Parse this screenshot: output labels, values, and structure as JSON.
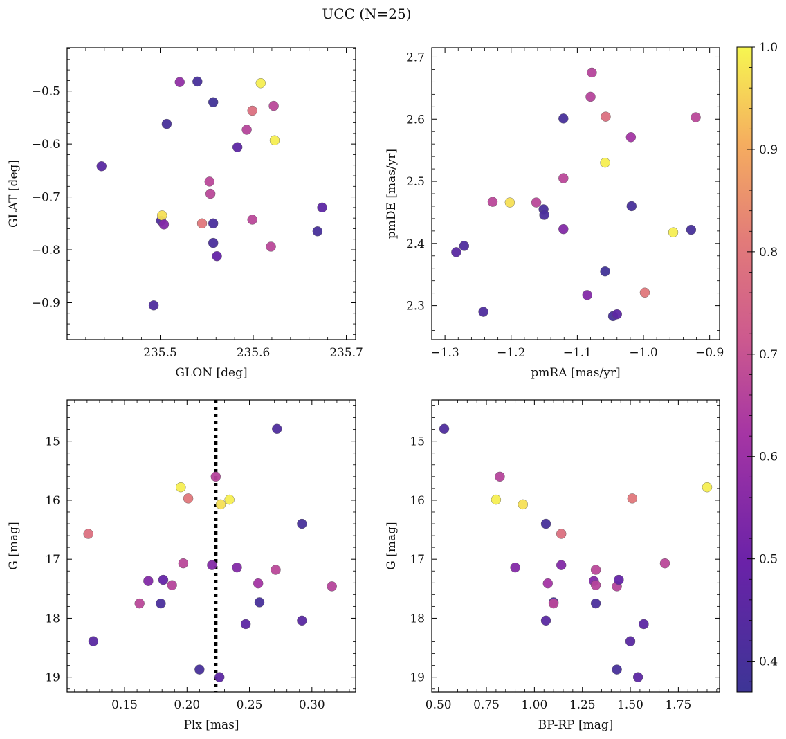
{
  "figure": {
    "title": "UCC (N=25)"
  },
  "colorbar": {
    "colormap": "plasma",
    "range": [
      0.37,
      1.0
    ],
    "ticks": [
      0.4,
      0.5,
      0.6,
      0.7,
      0.8,
      0.9,
      1.0
    ],
    "tick_labels": [
      "0.4",
      "0.5",
      "0.6",
      "0.7",
      "0.8",
      "0.9",
      "1.0"
    ]
  },
  "chart_data": [
    {
      "type": "scatter",
      "xlabel": "GLON [deg]",
      "ylabel": "GLAT [deg]",
      "xlim": [
        235.4,
        235.71
      ],
      "ylim": [
        -0.97,
        -0.418
      ],
      "y_inverted": false,
      "xticks": [
        235.5,
        235.6,
        235.7
      ],
      "xtick_labels": [
        "235.5",
        "235.6",
        "235.7"
      ],
      "yticks": [
        -0.9,
        -0.8,
        -0.7,
        -0.6,
        -0.5
      ],
      "ytick_labels": [
        "−0.9",
        "−0.8",
        "−0.7",
        "−0.6",
        "−0.5"
      ],
      "points": [
        {
          "x": 235.437,
          "y": -0.642,
          "c": 0.45
        },
        {
          "x": 235.493,
          "y": -0.905,
          "c": 0.42
        },
        {
          "x": 235.501,
          "y": -0.745,
          "c": 0.42
        },
        {
          "x": 235.502,
          "y": -0.735,
          "c": 0.97
        },
        {
          "x": 235.504,
          "y": -0.752,
          "c": 0.55
        },
        {
          "x": 235.507,
          "y": -0.562,
          "c": 0.4
        },
        {
          "x": 235.521,
          "y": -0.483,
          "c": 0.58
        },
        {
          "x": 235.54,
          "y": -0.482,
          "c": 0.4
        },
        {
          "x": 235.545,
          "y": -0.75,
          "c": 0.8
        },
        {
          "x": 235.553,
          "y": -0.671,
          "c": 0.67
        },
        {
          "x": 235.554,
          "y": -0.694,
          "c": 0.67
        },
        {
          "x": 235.557,
          "y": -0.521,
          "c": 0.38
        },
        {
          "x": 235.557,
          "y": -0.75,
          "c": 0.41
        },
        {
          "x": 235.557,
          "y": -0.787,
          "c": 0.41
        },
        {
          "x": 235.561,
          "y": -0.812,
          "c": 0.48
        },
        {
          "x": 235.583,
          "y": -0.606,
          "c": 0.46
        },
        {
          "x": 235.593,
          "y": -0.573,
          "c": 0.66
        },
        {
          "x": 235.599,
          "y": -0.537,
          "c": 0.78
        },
        {
          "x": 235.599,
          "y": -0.743,
          "c": 0.67
        },
        {
          "x": 235.608,
          "y": -0.485,
          "c": 0.99
        },
        {
          "x": 235.619,
          "y": -0.794,
          "c": 0.67
        },
        {
          "x": 235.622,
          "y": -0.528,
          "c": 0.67
        },
        {
          "x": 235.623,
          "y": -0.593,
          "c": 0.99
        },
        {
          "x": 235.669,
          "y": -0.765,
          "c": 0.4
        },
        {
          "x": 235.674,
          "y": -0.72,
          "c": 0.46
        }
      ]
    },
    {
      "type": "scatter",
      "xlabel": "pmRA [mas/yr]",
      "ylabel": "pmDE [mas/yr]",
      "xlim": [
        -1.32,
        -0.885
      ],
      "ylim": [
        2.245,
        2.715
      ],
      "y_inverted": false,
      "xticks": [
        -1.3,
        -1.2,
        -1.1,
        -1.0,
        -0.9
      ],
      "xtick_labels": [
        "−1.3",
        "−1.2",
        "−1.1",
        "−1.0",
        "−0.9"
      ],
      "yticks": [
        2.3,
        2.4,
        2.5,
        2.6,
        2.7
      ],
      "ytick_labels": [
        "2.3",
        "2.4",
        "2.5",
        "2.6",
        "2.7"
      ],
      "points": [
        {
          "x": -1.283,
          "y": 2.386,
          "c": 0.45
        },
        {
          "x": -1.271,
          "y": 2.396,
          "c": 0.42
        },
        {
          "x": -1.242,
          "y": 2.29,
          "c": 0.42
        },
        {
          "x": -1.228,
          "y": 2.467,
          "c": 0.67
        },
        {
          "x": -1.202,
          "y": 2.466,
          "c": 0.97
        },
        {
          "x": -1.162,
          "y": 2.466,
          "c": 0.67
        },
        {
          "x": -1.151,
          "y": 2.455,
          "c": 0.4
        },
        {
          "x": -1.15,
          "y": 2.446,
          "c": 0.41
        },
        {
          "x": -1.121,
          "y": 2.601,
          "c": 0.4
        },
        {
          "x": -1.121,
          "y": 2.505,
          "c": 0.67
        },
        {
          "x": -1.121,
          "y": 2.423,
          "c": 0.55
        },
        {
          "x": -1.085,
          "y": 2.317,
          "c": 0.55
        },
        {
          "x": -1.08,
          "y": 2.636,
          "c": 0.66
        },
        {
          "x": -1.078,
          "y": 2.675,
          "c": 0.66
        },
        {
          "x": -1.058,
          "y": 2.53,
          "c": 0.99
        },
        {
          "x": -1.057,
          "y": 2.604,
          "c": 0.78
        },
        {
          "x": -1.058,
          "y": 2.355,
          "c": 0.38
        },
        {
          "x": -1.046,
          "y": 2.283,
          "c": 0.4
        },
        {
          "x": -1.04,
          "y": 2.286,
          "c": 0.46
        },
        {
          "x": -1.019,
          "y": 2.571,
          "c": 0.62
        },
        {
          "x": -1.018,
          "y": 2.46,
          "c": 0.4
        },
        {
          "x": -0.998,
          "y": 2.321,
          "c": 0.8
        },
        {
          "x": -0.955,
          "y": 2.418,
          "c": 0.99
        },
        {
          "x": -0.928,
          "y": 2.422,
          "c": 0.4
        },
        {
          "x": -0.921,
          "y": 2.603,
          "c": 0.67
        }
      ]
    },
    {
      "type": "scatter",
      "xlabel": "Plx [mas]",
      "ylabel": "G [mag]",
      "xlim": [
        0.104,
        0.335
      ],
      "ylim": [
        19.25,
        14.3
      ],
      "y_inverted": true,
      "xticks": [
        0.15,
        0.2,
        0.25,
        0.3
      ],
      "xtick_labels": [
        "0.15",
        "0.20",
        "0.25",
        "0.30"
      ],
      "yticks": [
        15,
        16,
        17,
        18,
        19
      ],
      "ytick_labels": [
        "15",
        "16",
        "17",
        "18",
        "19"
      ],
      "vline": {
        "x": 0.223,
        "style": "dotted",
        "color": "#000000"
      },
      "points": [
        {
          "x": 0.121,
          "y": 16.57,
          "c": 0.78
        },
        {
          "x": 0.125,
          "y": 18.39,
          "c": 0.45
        },
        {
          "x": 0.162,
          "y": 17.75,
          "c": 0.67
        },
        {
          "x": 0.169,
          "y": 17.37,
          "c": 0.55
        },
        {
          "x": 0.179,
          "y": 17.75,
          "c": 0.41
        },
        {
          "x": 0.181,
          "y": 17.35,
          "c": 0.48
        },
        {
          "x": 0.188,
          "y": 17.44,
          "c": 0.66
        },
        {
          "x": 0.195,
          "y": 15.78,
          "c": 0.99
        },
        {
          "x": 0.197,
          "y": 17.07,
          "c": 0.67
        },
        {
          "x": 0.201,
          "y": 15.97,
          "c": 0.8
        },
        {
          "x": 0.21,
          "y": 18.87,
          "c": 0.4
        },
        {
          "x": 0.22,
          "y": 17.1,
          "c": 0.55
        },
        {
          "x": 0.223,
          "y": 15.6,
          "c": 0.66
        },
        {
          "x": 0.226,
          "y": 19.0,
          "c": 0.46
        },
        {
          "x": 0.227,
          "y": 16.07,
          "c": 0.97
        },
        {
          "x": 0.234,
          "y": 15.99,
          "c": 0.99
        },
        {
          "x": 0.24,
          "y": 17.14,
          "c": 0.55
        },
        {
          "x": 0.247,
          "y": 18.1,
          "c": 0.46
        },
        {
          "x": 0.257,
          "y": 17.41,
          "c": 0.62
        },
        {
          "x": 0.258,
          "y": 17.73,
          "c": 0.4
        },
        {
          "x": 0.271,
          "y": 17.18,
          "c": 0.67
        },
        {
          "x": 0.272,
          "y": 14.79,
          "c": 0.42
        },
        {
          "x": 0.292,
          "y": 16.4,
          "c": 0.4
        },
        {
          "x": 0.292,
          "y": 18.04,
          "c": 0.45
        },
        {
          "x": 0.316,
          "y": 17.46,
          "c": 0.66
        }
      ]
    },
    {
      "type": "scatter",
      "xlabel": "BP-RP [mag]",
      "ylabel": "G [mag]",
      "xlim": [
        0.465,
        1.965
      ],
      "ylim": [
        19.25,
        14.3
      ],
      "y_inverted": true,
      "xticks": [
        0.5,
        0.75,
        1.0,
        1.25,
        1.5,
        1.75
      ],
      "xtick_labels": [
        "0.50",
        "0.75",
        "1.00",
        "1.25",
        "1.50",
        "1.75"
      ],
      "yticks": [
        15,
        16,
        17,
        18,
        19
      ],
      "ytick_labels": [
        "15",
        "16",
        "17",
        "18",
        "19"
      ],
      "points": [
        {
          "x": 0.53,
          "y": 14.79,
          "c": 0.42
        },
        {
          "x": 0.82,
          "y": 15.6,
          "c": 0.66
        },
        {
          "x": 0.8,
          "y": 15.99,
          "c": 0.99
        },
        {
          "x": 0.94,
          "y": 16.07,
          "c": 0.97
        },
        {
          "x": 1.06,
          "y": 16.4,
          "c": 0.4
        },
        {
          "x": 1.14,
          "y": 16.57,
          "c": 0.78
        },
        {
          "x": 0.9,
          "y": 17.14,
          "c": 0.55
        },
        {
          "x": 1.14,
          "y": 17.1,
          "c": 0.55
        },
        {
          "x": 1.07,
          "y": 17.41,
          "c": 0.62
        },
        {
          "x": 1.1,
          "y": 17.73,
          "c": 0.4
        },
        {
          "x": 1.1,
          "y": 17.75,
          "c": 0.67
        },
        {
          "x": 1.06,
          "y": 18.04,
          "c": 0.45
        },
        {
          "x": 1.32,
          "y": 17.18,
          "c": 0.67
        },
        {
          "x": 1.31,
          "y": 17.37,
          "c": 0.55
        },
        {
          "x": 1.32,
          "y": 17.44,
          "c": 0.66
        },
        {
          "x": 1.32,
          "y": 17.75,
          "c": 0.41
        },
        {
          "x": 1.43,
          "y": 17.46,
          "c": 0.66
        },
        {
          "x": 1.44,
          "y": 17.35,
          "c": 0.48
        },
        {
          "x": 1.51,
          "y": 15.97,
          "c": 0.8
        },
        {
          "x": 1.68,
          "y": 17.07,
          "c": 0.67
        },
        {
          "x": 1.9,
          "y": 15.78,
          "c": 0.99
        },
        {
          "x": 1.5,
          "y": 18.39,
          "c": 0.45
        },
        {
          "x": 1.57,
          "y": 18.1,
          "c": 0.46
        },
        {
          "x": 1.43,
          "y": 18.87,
          "c": 0.4
        },
        {
          "x": 1.54,
          "y": 19.0,
          "c": 0.46
        }
      ]
    }
  ]
}
